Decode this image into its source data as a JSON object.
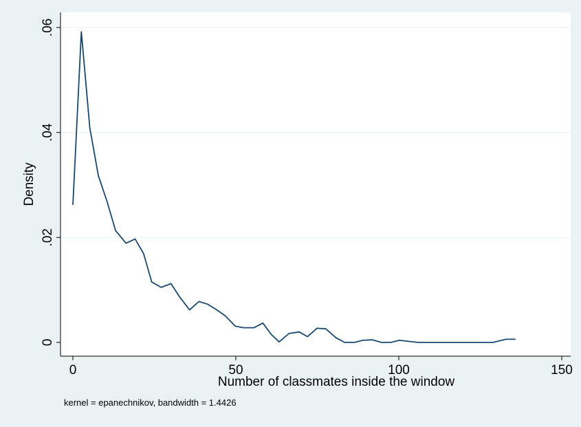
{
  "chart_data": {
    "type": "line",
    "title": "",
    "xlabel": "Number of classmates inside the window",
    "ylabel": "Density",
    "note": "kernel = epanechnikov, bandwidth = 1.4426",
    "xlim": [
      0,
      150
    ],
    "ylim": [
      0,
      0.06
    ],
    "xticks": [
      0,
      50,
      100,
      150
    ],
    "xtick_labels": [
      "0",
      "50",
      "100",
      "150"
    ],
    "yticks": [
      0,
      0.02,
      0.04,
      0.06
    ],
    "ytick_labels": [
      "0",
      ".02",
      ".04",
      ".06"
    ],
    "grid": true,
    "colors": {
      "background": "#eaf2f3",
      "plot_area": "#ffffff",
      "line": "#1a476f",
      "grid": "#eaf2f3"
    },
    "series": [
      {
        "x": [
          0,
          2.6,
          5.2,
          7.8,
          10.5,
          13.1,
          16.3,
          19.1,
          21.7,
          24.2,
          27.1,
          30.1,
          32.6,
          35.8,
          38.7,
          41.3,
          43.9,
          46.7,
          49.8,
          52.3,
          55.6,
          58.3,
          60.9,
          63.3,
          66.3,
          69.4,
          72.0,
          74.9,
          77.6,
          80.7,
          83.4,
          86.3,
          89.0,
          91.9,
          94.7,
          97.5,
          100.2,
          103.1,
          105.9,
          108.8,
          111.6,
          114.6,
          117.5,
          120.4,
          123.1,
          126.0,
          128.9,
          132.9,
          135.8
        ],
        "y": [
          0.0262,
          0.0592,
          0.0409,
          0.0318,
          0.0268,
          0.0213,
          0.0189,
          0.0197,
          0.0169,
          0.0115,
          0.0105,
          0.0112,
          0.0088,
          0.0062,
          0.0078,
          0.0073,
          0.0063,
          0.0051,
          0.0031,
          0.0028,
          0.0028,
          0.0037,
          0.0015,
          0.0001,
          0.0017,
          0.002,
          0.0011,
          0.0027,
          0.0026,
          0.0009,
          0.0,
          0.0,
          0.0004,
          0.0005,
          0.0,
          0.0,
          0.0004,
          0.0002,
          0.0,
          0.0,
          0.0,
          0.0,
          0.0,
          0.0,
          0.0,
          0.0,
          0.0,
          0.0006,
          0.0006
        ]
      }
    ]
  }
}
